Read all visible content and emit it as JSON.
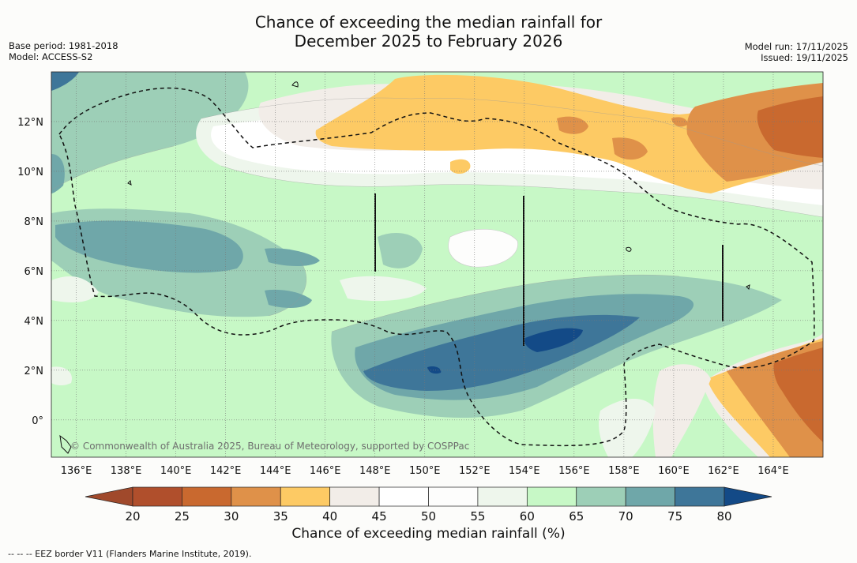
{
  "title_line1": "Chance of exceeding the median rainfall for",
  "title_line2": "December 2025 to February 2026",
  "base_period": "Base period: 1981-2018",
  "model": "Model: ACCESS-S2",
  "model_run": "Model run: 17/11/2025",
  "issued": "Issued: 19/11/2025",
  "copyright": "© Commonwealth of Australia 2025, Bureau of Meteorology, supported by COSPPac",
  "footnote": "--  --  -- EEZ border V11 (Flanders Marine Institute, 2019).",
  "map": {
    "lon_range": [
      135,
      166
    ],
    "lat_range": [
      -1.5,
      14
    ],
    "lon_ticks": [
      "136°E",
      "138°E",
      "140°E",
      "142°E",
      "144°E",
      "146°E",
      "148°E",
      "150°E",
      "152°E",
      "154°E",
      "156°E",
      "158°E",
      "160°E",
      "162°E",
      "164°E"
    ],
    "lat_ticks": [
      "12°N",
      "10°N",
      "8°N",
      "6°N",
      "4°N",
      "2°N",
      "0°"
    ]
  },
  "colorbar": {
    "title": "Chance of exceeding median rainfall (%)",
    "ticks": [
      "20",
      "25",
      "30",
      "35",
      "40",
      "45",
      "50",
      "55",
      "60",
      "65",
      "70",
      "75",
      "80"
    ],
    "colors": [
      "#a0492b",
      "#b04f2c",
      "#c9692f",
      "#df9149",
      "#fdca64",
      "#f2ede8",
      "#ffffff",
      "#fdfdfc",
      "#eef6ec",
      "#c7f8c6",
      "#9dcfb7",
      "#6fa7a9",
      "#3e7699",
      "#134a87"
    ]
  }
}
